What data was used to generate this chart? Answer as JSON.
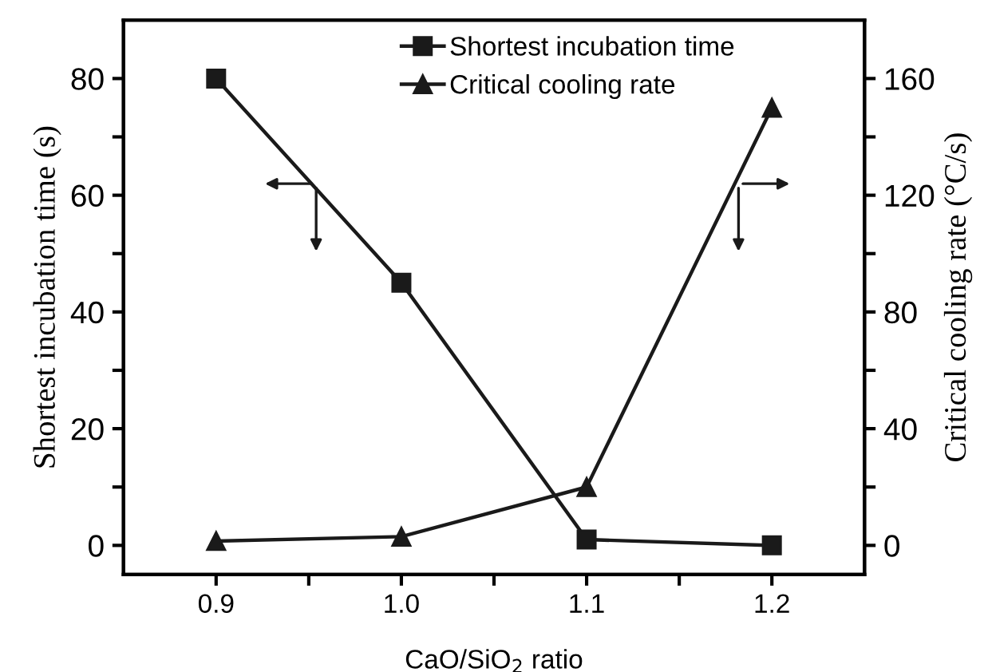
{
  "chart_data": {
    "type": "line",
    "x": [
      0.9,
      1.0,
      1.1,
      1.2
    ],
    "xlabel": "CaO/SiO$_{2}$ ratio",
    "ylabel": "Shortest incubation time (s)",
    "y2label": "Critical cooling rate (°C/s)",
    "series": [
      {
        "name": "Shortest incubation time",
        "color": "#1a1a1a",
        "marker": "square",
        "values": [
          80,
          45,
          1,
          0
        ]
      },
      {
        "name": "Critical cooling rate",
        "color": "#1a1a1a",
        "marker": "triangle",
        "axis": "y2",
        "values": [
          1.5,
          3,
          20,
          150
        ]
      }
    ],
    "xlim": [
      0.85,
      1.25
    ],
    "xticks": [
      {
        "value": 0.9,
        "label": "0.9"
      },
      {
        "value": 0.95,
        "label": null
      },
      {
        "value": 1.0,
        "label": "1.0"
      },
      {
        "value": 1.05,
        "label": null
      },
      {
        "value": 1.1,
        "label": "1.1"
      },
      {
        "value": 1.15,
        "label": null
      },
      {
        "value": 1.2,
        "label": "1.2"
      }
    ],
    "ylim": [
      -5,
      90
    ],
    "yticks": [
      0,
      {
        "value": 10,
        "label": null
      },
      20,
      {
        "value": 30,
        "label": null
      },
      40,
      {
        "value": 50,
        "label": null
      },
      60,
      {
        "value": 70,
        "label": null
      },
      80
    ],
    "y2lim": [
      -10,
      180
    ],
    "y2ticks": [
      0,
      {
        "value": 20,
        "label": null
      },
      40,
      {
        "value": 60,
        "label": null
      },
      80,
      {
        "value": 100,
        "label": null
      },
      120,
      {
        "value": 140,
        "label": null
      },
      160
    ],
    "line_style": "solid",
    "grid": false,
    "legend": "top"
  }
}
